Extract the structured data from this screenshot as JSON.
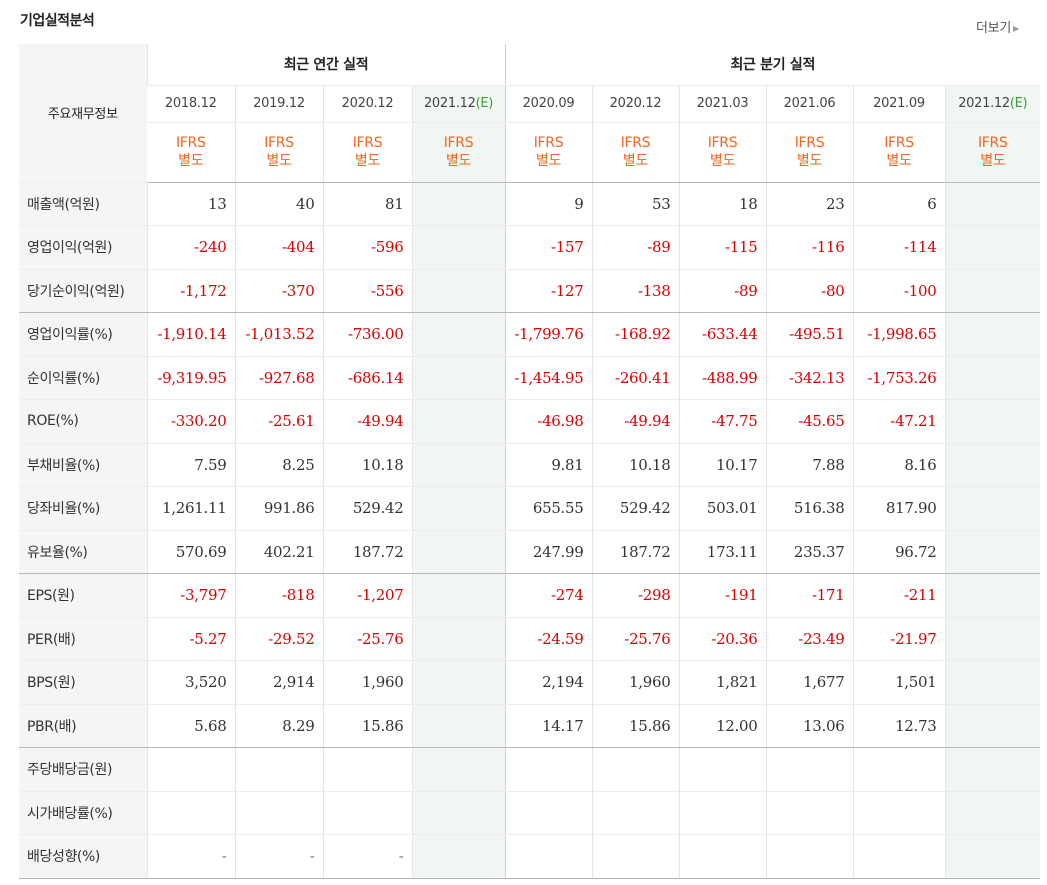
{
  "header": {
    "title": "기업실적분석",
    "more_label": "더보기"
  },
  "table": {
    "corner_label": "주요재무정보",
    "annual_group": "최근 연간 실적",
    "quarter_group": "최근 분기 실적",
    "annual_dates": [
      "2018.12",
      "2019.12",
      "2020.12",
      "2021.12"
    ],
    "quarter_dates": [
      "2020.09",
      "2020.12",
      "2021.03",
      "2021.06",
      "2021.09",
      "2021.12"
    ],
    "estimate_marker": "(E)",
    "ifrs_line1": "IFRS",
    "ifrs_line2": "별도",
    "rows": [
      {
        "label": "매출액(억원)",
        "annual": [
          "13",
          "40",
          "81",
          ""
        ],
        "quarter": [
          "9",
          "53",
          "18",
          "23",
          "6",
          ""
        ]
      },
      {
        "label": "영업이익(억원)",
        "annual": [
          "-240",
          "-404",
          "-596",
          ""
        ],
        "quarter": [
          "-157",
          "-89",
          "-115",
          "-116",
          "-114",
          ""
        ]
      },
      {
        "label": "당기순이익(억원)",
        "annual": [
          "-1,172",
          "-370",
          "-556",
          ""
        ],
        "quarter": [
          "-127",
          "-138",
          "-89",
          "-80",
          "-100",
          ""
        ]
      },
      {
        "label": "영업이익률(%)",
        "annual": [
          "-1,910.14",
          "-1,013.52",
          "-736.00",
          ""
        ],
        "quarter": [
          "-1,799.76",
          "-168.92",
          "-633.44",
          "-495.51",
          "-1,998.65",
          ""
        ]
      },
      {
        "label": "순이익률(%)",
        "annual": [
          "-9,319.95",
          "-927.68",
          "-686.14",
          ""
        ],
        "quarter": [
          "-1,454.95",
          "-260.41",
          "-488.99",
          "-342.13",
          "-1,753.26",
          ""
        ]
      },
      {
        "label": "ROE(%)",
        "annual": [
          "-330.20",
          "-25.61",
          "-49.94",
          ""
        ],
        "quarter": [
          "-46.98",
          "-49.94",
          "-47.75",
          "-45.65",
          "-47.21",
          ""
        ]
      },
      {
        "label": "부채비율(%)",
        "annual": [
          "7.59",
          "8.25",
          "10.18",
          ""
        ],
        "quarter": [
          "9.81",
          "10.18",
          "10.17",
          "7.88",
          "8.16",
          ""
        ]
      },
      {
        "label": "당좌비율(%)",
        "annual": [
          "1,261.11",
          "991.86",
          "529.42",
          ""
        ],
        "quarter": [
          "655.55",
          "529.42",
          "503.01",
          "516.38",
          "817.90",
          ""
        ]
      },
      {
        "label": "유보율(%)",
        "annual": [
          "570.69",
          "402.21",
          "187.72",
          ""
        ],
        "quarter": [
          "247.99",
          "187.72",
          "173.11",
          "235.37",
          "96.72",
          ""
        ]
      },
      {
        "label": "EPS(원)",
        "annual": [
          "-3,797",
          "-818",
          "-1,207",
          ""
        ],
        "quarter": [
          "-274",
          "-298",
          "-191",
          "-171",
          "-211",
          ""
        ]
      },
      {
        "label": "PER(배)",
        "annual": [
          "-5.27",
          "-29.52",
          "-25.76",
          ""
        ],
        "quarter": [
          "-24.59",
          "-25.76",
          "-20.36",
          "-23.49",
          "-21.97",
          ""
        ]
      },
      {
        "label": "BPS(원)",
        "annual": [
          "3,520",
          "2,914",
          "1,960",
          ""
        ],
        "quarter": [
          "2,194",
          "1,960",
          "1,821",
          "1,677",
          "1,501",
          ""
        ]
      },
      {
        "label": "PBR(배)",
        "annual": [
          "5.68",
          "8.29",
          "15.86",
          ""
        ],
        "quarter": [
          "14.17",
          "15.86",
          "12.00",
          "13.06",
          "12.73",
          ""
        ]
      },
      {
        "label": "주당배당금(원)",
        "annual": [
          "",
          "",
          "",
          ""
        ],
        "quarter": [
          "",
          "",
          "",
          "",
          "",
          ""
        ]
      },
      {
        "label": "시가배당률(%)",
        "annual": [
          "",
          "",
          "",
          ""
        ],
        "quarter": [
          "",
          "",
          "",
          "",
          "",
          ""
        ]
      },
      {
        "label": "배당성향(%)",
        "annual": [
          "-",
          "-",
          "-",
          ""
        ],
        "quarter": [
          "",
          "",
          "",
          "",
          "",
          ""
        ]
      }
    ]
  },
  "colors": {
    "negative": "#dd0000",
    "ifrs": "#f26522",
    "estimate": "#3a9a3a",
    "estimate_bg": "#f2f6f3"
  }
}
